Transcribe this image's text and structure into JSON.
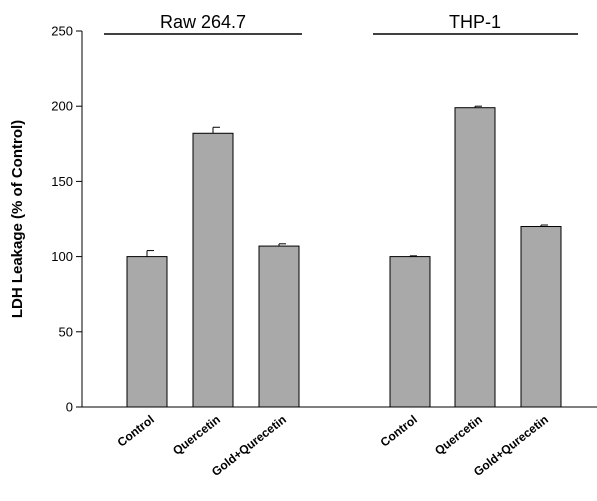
{
  "chart_data": {
    "type": "bar",
    "title": "",
    "xlabel": "",
    "ylabel": "LDH Leakage (% of Control)",
    "ylim": [
      0,
      250
    ],
    "yticks": [
      0,
      50,
      100,
      150,
      200,
      250
    ],
    "grid": false,
    "bar_color": "#a9a9a9",
    "groups": [
      {
        "name": "Raw 264.7",
        "categories": [
          "Control",
          "Quercetin",
          "Gold+Qurecetin"
        ],
        "values": [
          100,
          182,
          107
        ],
        "errors": [
          4,
          4,
          1.5
        ]
      },
      {
        "name": "THP-1",
        "categories": [
          "Control",
          "Quercetin",
          "Gold+Qurecetin"
        ],
        "values": [
          100,
          199,
          120
        ],
        "errors": [
          0.5,
          1,
          1
        ]
      }
    ]
  }
}
